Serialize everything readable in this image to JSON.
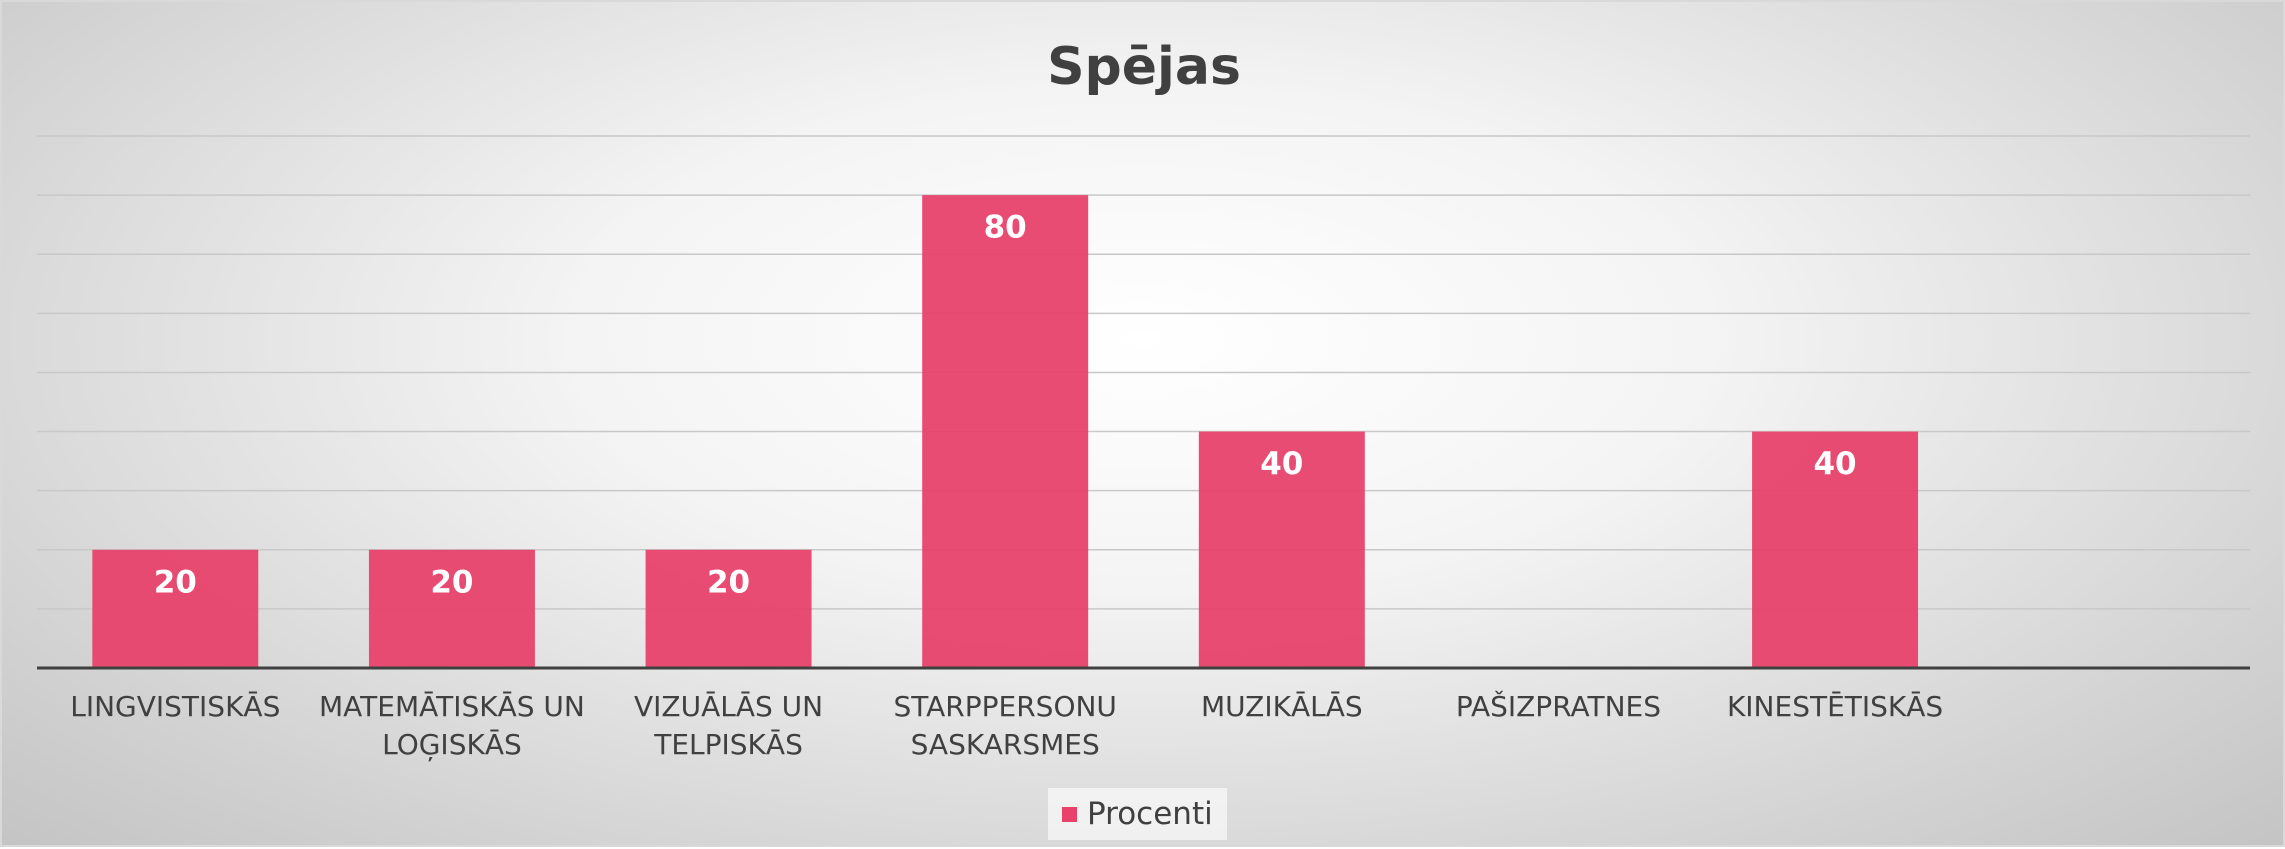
{
  "chart_data": {
    "type": "bar",
    "title": "Spējas",
    "categories": [
      "LINGVISTISKĀS",
      "MATEMĀTISKĀS UN LOĢISKĀS",
      "VIZUĀLĀS UN TELPISKĀS",
      "STARPPERSONU SASKARSMES",
      "MUZIKĀLĀS",
      "PAŠIZPRATNES",
      "KINESTĒTISKĀS",
      null
    ],
    "series": [
      {
        "name": "Procenti",
        "color": "#e8426a",
        "values": [
          20,
          20,
          20,
          80,
          40,
          null,
          40,
          null
        ]
      }
    ],
    "ylim": [
      0,
      90
    ],
    "yticks": [
      0,
      10,
      20,
      30,
      40,
      50,
      60,
      70,
      80,
      90
    ],
    "ytick_labels": false,
    "grid": true,
    "legend": "bottom"
  }
}
